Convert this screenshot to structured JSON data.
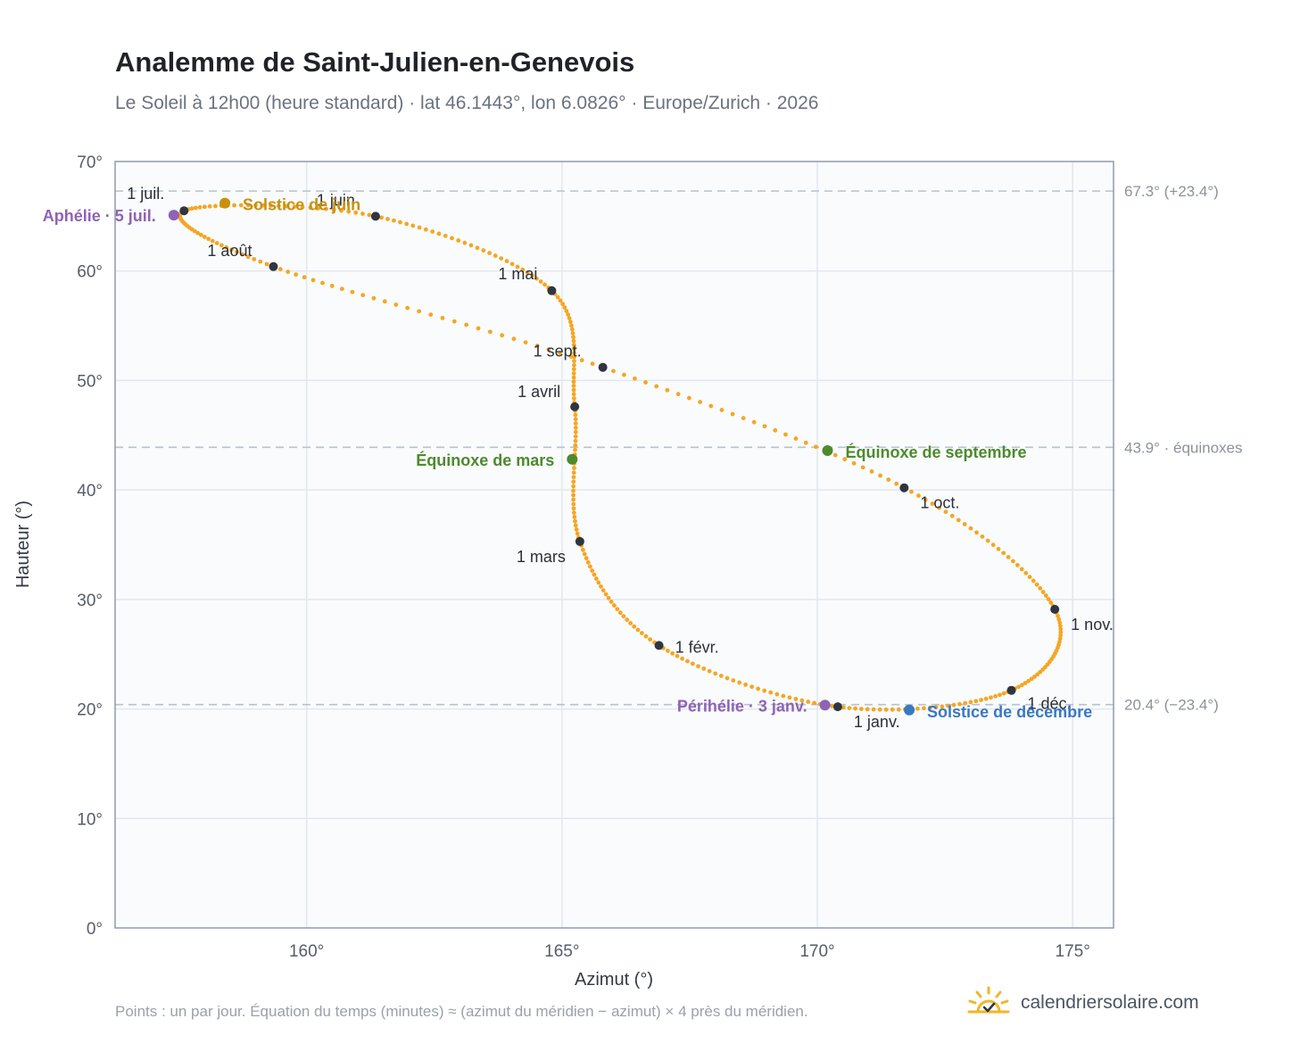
{
  "header": {
    "title": "Analemme de Saint-Julien-en-Genevois",
    "subtitle": "Le Soleil à 12h00 (heure standard) · lat 46.1443°, lon 6.0826° · Europe/Zurich · 2026"
  },
  "footer": {
    "note": "Points : un par jour. Équation du temps (minutes) ≈ (azimut du méridien − azimut) × 4 près du méridien.",
    "brand": "calendriersolaire.com",
    "brand_icon": "sun-check-icon"
  },
  "colors": {
    "curve": "#f5a623",
    "month_marker": "#2f3640",
    "apsis": "#8e63b5",
    "june_solstice": "#c8910c",
    "equinox": "#4e8a2c",
    "december_solstice": "#3a78c0",
    "reference_line": "#b9c2cc",
    "plot_background": "#f9fbfd",
    "grid": "#e3e8ee",
    "frame": "#8f9bab"
  },
  "chart_data": {
    "type": "scatter",
    "xlabel": "Azimut (°)",
    "ylabel": "Hauteur (°)",
    "xlim": [
      156.25,
      175.8
    ],
    "ylim": [
      0,
      70
    ],
    "x_ticks": [
      "160°",
      "165°",
      "170°",
      "175°"
    ],
    "y_ticks": [
      "0°",
      "10°",
      "20°",
      "30°",
      "40°",
      "50°",
      "60°",
      "70°"
    ],
    "grid": true,
    "reference_lines": [
      {
        "y": 67.3,
        "label": "67.3° (+23.4°)"
      },
      {
        "y": 43.9,
        "label": "43.9° · équinoxes"
      },
      {
        "y": 20.4,
        "label": "20.4° (−23.4°)"
      }
    ],
    "month_markers": [
      {
        "label": "1 janv.",
        "x": 170.4,
        "y": 20.2
      },
      {
        "label": "1 févr.",
        "x": 166.9,
        "y": 25.8
      },
      {
        "label": "1 mars",
        "x": 165.35,
        "y": 35.3
      },
      {
        "label": "1 avril",
        "x": 165.25,
        "y": 47.6
      },
      {
        "label": "1 mai",
        "x": 164.8,
        "y": 58.2
      },
      {
        "label": "1 juin",
        "x": 161.35,
        "y": 65.0
      },
      {
        "label": "1 juil.",
        "x": 157.6,
        "y": 65.5
      },
      {
        "label": "1 août",
        "x": 159.35,
        "y": 60.4
      },
      {
        "label": "1 sept.",
        "x": 165.8,
        "y": 51.2
      },
      {
        "label": "1 oct.",
        "x": 171.7,
        "y": 40.2
      },
      {
        "label": "1 nov.",
        "x": 174.65,
        "y": 29.1
      },
      {
        "label": "1 déc.",
        "x": 173.8,
        "y": 21.7
      }
    ],
    "special_points": [
      {
        "label": "Aphélie · 5 juil.",
        "x": 157.4,
        "y": 65.1,
        "color": "#8e63b5"
      },
      {
        "label": "Solstice de juin",
        "x": 158.4,
        "y": 66.2,
        "color": "#c8910c"
      },
      {
        "label": "Équinoxe de mars",
        "x": 165.2,
        "y": 42.8,
        "color": "#4e8a2c"
      },
      {
        "label": "Équinoxe de septembre",
        "x": 170.2,
        "y": 43.6,
        "color": "#4e8a2c"
      },
      {
        "label": "Périhélie · 3 janv.",
        "x": 170.15,
        "y": 20.35,
        "color": "#8e63b5"
      },
      {
        "label": "Solstice de décembre",
        "x": 171.8,
        "y": 19.9,
        "color": "#3a78c0"
      }
    ]
  }
}
